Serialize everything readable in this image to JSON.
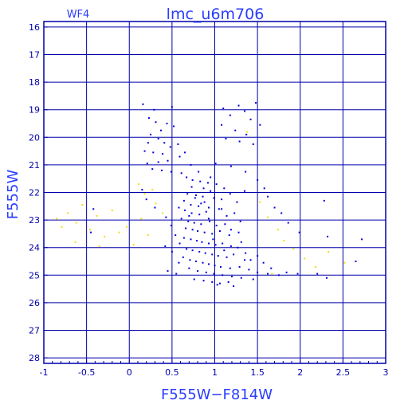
{
  "chart_data": {
    "type": "scatter",
    "title": "lmc_u6m706",
    "subtitle": "WF4",
    "xlabel": "F555W−F814W",
    "ylabel": "F555W",
    "xlim": [
      -1,
      3
    ],
    "ylim": [
      28.2,
      15.8
    ],
    "x_ticks": [
      -1,
      -0.5,
      0,
      0.5,
      1,
      1.5,
      2,
      2.5,
      3
    ],
    "x_tick_labels": [
      "-1",
      "-0.5",
      "0",
      "0.5",
      "1",
      "1.5",
      "2",
      "2.5",
      "3"
    ],
    "y_ticks": [
      16,
      17,
      18,
      19,
      20,
      21,
      22,
      23,
      24,
      25,
      26,
      27,
      28
    ],
    "y_tick_labels": [
      "16",
      "17",
      "18",
      "19",
      "20",
      "21",
      "22",
      "23",
      "24",
      "25",
      "26",
      "27",
      "28"
    ],
    "grid": true,
    "colors": {
      "axis": "#0000aa",
      "grid": "#0000aa",
      "label": "#2a3dff",
      "blue_points": "#0000dd",
      "yellow_points": "#f2dd00",
      "background": "#ffffff"
    },
    "series": [
      {
        "color_key": "blue_points",
        "points": [
          [
            0.16,
            18.8
          ],
          [
            0.5,
            18.9
          ],
          [
            0.29,
            19.0
          ],
          [
            0.23,
            19.3
          ],
          [
            0.31,
            19.45
          ],
          [
            0.44,
            19.5
          ],
          [
            0.52,
            19.6
          ],
          [
            0.37,
            19.75
          ],
          [
            0.25,
            19.9
          ],
          [
            0.34,
            20.05
          ],
          [
            0.22,
            20.2
          ],
          [
            0.41,
            20.2
          ],
          [
            0.48,
            20.35
          ],
          [
            0.18,
            20.5
          ],
          [
            0.28,
            20.55
          ],
          [
            0.39,
            20.6
          ],
          [
            0.57,
            20.25
          ],
          [
            0.65,
            20.55
          ],
          [
            0.21,
            20.95
          ],
          [
            0.34,
            20.9
          ],
          [
            0.45,
            20.85
          ],
          [
            0.59,
            20.7
          ],
          [
            0.72,
            21.0
          ],
          [
            0.27,
            21.15
          ],
          [
            0.38,
            21.2
          ],
          [
            0.49,
            21.25
          ],
          [
            0.61,
            21.3
          ],
          [
            0.81,
            21.25
          ],
          [
            0.67,
            21.45
          ],
          [
            0.74,
            21.55
          ],
          [
            0.83,
            21.6
          ],
          [
            0.95,
            21.45
          ],
          [
            1.02,
            21.7
          ],
          [
            1.11,
            21.85
          ],
          [
            0.73,
            21.8
          ],
          [
            0.87,
            21.85
          ],
          [
            0.95,
            21.95
          ],
          [
            0.68,
            22.05
          ],
          [
            0.78,
            22.1
          ],
          [
            0.86,
            22.15
          ],
          [
            0.99,
            22.2
          ],
          [
            1.08,
            22.25
          ],
          [
            1.18,
            22.05
          ],
          [
            1.26,
            22.35
          ],
          [
            1.35,
            21.95
          ],
          [
            0.64,
            22.3
          ],
          [
            0.72,
            22.45
          ],
          [
            0.81,
            22.5
          ],
          [
            0.88,
            22.35
          ],
          [
            0.93,
            22.55
          ],
          [
            0.58,
            22.55
          ],
          [
            0.65,
            22.65
          ],
          [
            0.73,
            22.75
          ],
          [
            0.82,
            22.8
          ],
          [
            0.9,
            22.7
          ],
          [
            1.05,
            22.6
          ],
          [
            1.14,
            22.85
          ],
          [
            1.23,
            22.75
          ],
          [
            0.61,
            22.95
          ],
          [
            0.69,
            23.05
          ],
          [
            0.76,
            23.1
          ],
          [
            0.84,
            23.15
          ],
          [
            0.94,
            23.05
          ],
          [
            1.02,
            23.2
          ],
          [
            1.12,
            23.15
          ],
          [
            1.3,
            23.05
          ],
          [
            0.66,
            23.3
          ],
          [
            0.74,
            23.35
          ],
          [
            0.8,
            23.4
          ],
          [
            0.88,
            23.45
          ],
          [
            0.97,
            23.5
          ],
          [
            1.06,
            23.4
          ],
          [
            1.17,
            23.55
          ],
          [
            1.28,
            23.45
          ],
          [
            0.64,
            23.65
          ],
          [
            0.72,
            23.7
          ],
          [
            0.79,
            23.75
          ],
          [
            0.85,
            23.8
          ],
          [
            0.93,
            23.85
          ],
          [
            1.01,
            23.9
          ],
          [
            1.09,
            23.85
          ],
          [
            1.19,
            23.95
          ],
          [
            1.31,
            23.8
          ],
          [
            0.67,
            24.05
          ],
          [
            0.74,
            24.1
          ],
          [
            0.82,
            24.15
          ],
          [
            0.89,
            24.2
          ],
          [
            0.97,
            24.25
          ],
          [
            1.04,
            24.3
          ],
          [
            1.14,
            24.35
          ],
          [
            1.22,
            24.25
          ],
          [
            1.35,
            24.45
          ],
          [
            0.63,
            24.35
          ],
          [
            0.71,
            24.45
          ],
          [
            0.78,
            24.5
          ],
          [
            0.86,
            24.55
          ],
          [
            0.93,
            24.6
          ],
          [
            1.0,
            24.65
          ],
          [
            1.07,
            24.7
          ],
          [
            1.18,
            24.75
          ],
          [
            1.29,
            24.7
          ],
          [
            1.4,
            24.8
          ],
          [
            1.5,
            24.9
          ],
          [
            1.62,
            24.95
          ],
          [
            1.75,
            25.0
          ],
          [
            0.7,
            24.75
          ],
          [
            0.8,
            24.85
          ],
          [
            0.9,
            24.9
          ],
          [
            0.99,
            24.95
          ],
          [
            1.09,
            25.0
          ],
          [
            1.2,
            25.05
          ],
          [
            1.31,
            25.1
          ],
          [
            1.45,
            25.15
          ],
          [
            0.76,
            25.15
          ],
          [
            0.87,
            25.2
          ],
          [
            0.97,
            25.25
          ],
          [
            1.06,
            25.3
          ],
          [
            1.16,
            25.25
          ],
          [
            1.03,
            25.35
          ],
          [
            1.22,
            25.4
          ],
          [
            0.55,
            24.95
          ],
          [
            1.84,
            24.9
          ],
          [
            1.97,
            24.95
          ],
          [
            2.2,
            24.95
          ],
          [
            2.31,
            25.1
          ],
          [
            2.28,
            22.3
          ],
          [
            2.32,
            23.6
          ],
          [
            2.72,
            23.7
          ],
          [
            2.65,
            24.5
          ],
          [
            1.1,
            18.95
          ],
          [
            1.28,
            18.85
          ],
          [
            1.48,
            18.75
          ],
          [
            1.35,
            19.05
          ],
          [
            1.18,
            19.2
          ],
          [
            1.42,
            19.35
          ],
          [
            1.08,
            19.55
          ],
          [
            1.24,
            19.75
          ],
          [
            1.37,
            19.9
          ],
          [
            1.13,
            20.05
          ],
          [
            1.29,
            20.15
          ],
          [
            1.45,
            20.25
          ],
          [
            1.53,
            19.55
          ],
          [
            1.01,
            20.95
          ],
          [
            1.19,
            21.05
          ],
          [
            1.36,
            21.25
          ],
          [
            1.5,
            21.55
          ],
          [
            1.58,
            21.85
          ],
          [
            1.62,
            22.15
          ],
          [
            1.7,
            22.55
          ],
          [
            1.78,
            22.75
          ],
          [
            1.86,
            23.1
          ],
          [
            1.99,
            23.45
          ],
          [
            0.15,
            21.9
          ],
          [
            0.2,
            22.25
          ],
          [
            0.3,
            22.55
          ],
          [
            0.43,
            22.9
          ],
          [
            0.49,
            23.2
          ],
          [
            0.54,
            23.55
          ],
          [
            0.59,
            23.85
          ],
          [
            -0.42,
            22.6
          ],
          [
            -0.45,
            23.45
          ],
          [
            0.42,
            23.95
          ],
          [
            0.5,
            24.15
          ],
          [
            0.58,
            24.55
          ],
          [
            0.45,
            24.85
          ],
          [
            0.7,
            22.85
          ],
          [
            0.77,
            22.2
          ],
          [
            0.92,
            21.65
          ],
          [
            1.08,
            22.6
          ],
          [
            1.19,
            23.35
          ],
          [
            1.27,
            24.0
          ],
          [
            1.36,
            24.2
          ],
          [
            1.42,
            24.45
          ],
          [
            1.5,
            24.3
          ],
          [
            1.57,
            24.55
          ],
          [
            1.66,
            24.75
          ],
          [
            0.84,
            22.4
          ],
          [
            0.93,
            22.95
          ],
          [
            1.11,
            24.1
          ],
          [
            0.98,
            23.7
          ]
        ]
      },
      {
        "color_key": "yellow_points",
        "points": [
          [
            -0.85,
            22.95
          ],
          [
            -0.72,
            22.75
          ],
          [
            -0.62,
            23.1
          ],
          [
            -0.55,
            22.45
          ],
          [
            -0.46,
            23.35
          ],
          [
            -0.38,
            22.85
          ],
          [
            -0.29,
            23.6
          ],
          [
            -0.2,
            22.65
          ],
          [
            -0.12,
            23.45
          ],
          [
            -0.03,
            23.25
          ],
          [
            0.05,
            23.9
          ],
          [
            0.14,
            22.95
          ],
          [
            0.22,
            23.55
          ],
          [
            0.31,
            22.4
          ],
          [
            0.39,
            22.75
          ],
          [
            0.11,
            21.7
          ],
          [
            0.18,
            22.05
          ],
          [
            0.27,
            21.9
          ],
          [
            -0.63,
            23.8
          ],
          [
            -0.35,
            23.95
          ],
          [
            -0.79,
            23.25
          ],
          [
            1.53,
            22.35
          ],
          [
            1.62,
            22.9
          ],
          [
            1.74,
            23.35
          ],
          [
            1.81,
            23.75
          ],
          [
            1.92,
            24.05
          ],
          [
            2.05,
            24.4
          ],
          [
            2.18,
            24.7
          ],
          [
            2.33,
            24.15
          ],
          [
            2.52,
            24.55
          ],
          [
            1.67,
            24.95
          ],
          [
            1.38,
            19.8
          ]
        ]
      }
    ]
  }
}
